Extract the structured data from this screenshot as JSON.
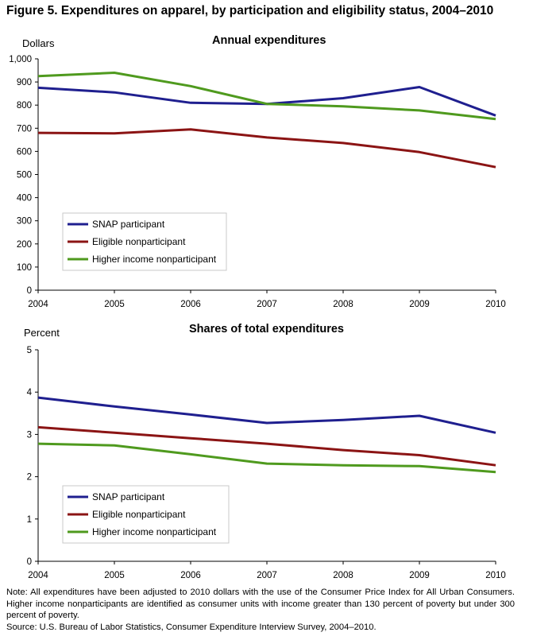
{
  "figure_title": "Figure 5. Expenditures on apparel, by participation and eligibility status, 2004–2010",
  "note": "Note: All expenditures have been adjusted to 2010 dollars with the use of the Consumer Price Index for All Urban Consumers. Higher income nonparticipants are identified as consumer units with income greater than 130 percent of poverty but under 300 percent of poverty.",
  "source": "Source: U.S. Bureau of Labor Statistics, Consumer Expenditure Interview Survey, 2004–2010.",
  "colors": {
    "SNAP participant": "#1f1f8f",
    "Eligible nonparticipant": "#8b1414",
    "Higher income nonparticipant": "#4f9a1e"
  },
  "chart_data": [
    {
      "type": "line",
      "title": "Annual expenditures",
      "ylabel": "Dollars",
      "xlabel": "",
      "x": [
        "2004",
        "2005",
        "2006",
        "2007",
        "2008",
        "2009",
        "2010"
      ],
      "ylim": [
        0,
        1000
      ],
      "yticks": [
        "0",
        "100",
        "200",
        "300",
        "400",
        "500",
        "600",
        "700",
        "800",
        "900",
        "1,000"
      ],
      "legend_position": "lower-left",
      "grid": false,
      "series": [
        {
          "name": "SNAP participant",
          "values": [
            875,
            855,
            810,
            805,
            830,
            878,
            755
          ]
        },
        {
          "name": "Eligible nonparticipant",
          "values": [
            680,
            678,
            695,
            660,
            636,
            597,
            532
          ]
        },
        {
          "name": "Higher income nonparticipant",
          "values": [
            925,
            940,
            882,
            805,
            795,
            777,
            740
          ]
        }
      ]
    },
    {
      "type": "line",
      "title": "Shares of total expenditures",
      "ylabel": "Percent",
      "xlabel": "",
      "x": [
        "2004",
        "2005",
        "2006",
        "2007",
        "2008",
        "2009",
        "2010"
      ],
      "ylim": [
        0,
        5
      ],
      "yticks": [
        "0",
        "1",
        "2",
        "3",
        "4",
        "5"
      ],
      "legend_position": "lower-left",
      "grid": false,
      "series": [
        {
          "name": "SNAP participant",
          "values": [
            3.87,
            3.66,
            3.47,
            3.27,
            3.34,
            3.44,
            3.04
          ]
        },
        {
          "name": "Eligible nonparticipant",
          "values": [
            3.17,
            3.04,
            2.91,
            2.78,
            2.63,
            2.51,
            2.27
          ]
        },
        {
          "name": "Higher income nonparticipant",
          "values": [
            2.78,
            2.74,
            2.53,
            2.31,
            2.27,
            2.25,
            2.11
          ]
        }
      ]
    }
  ]
}
